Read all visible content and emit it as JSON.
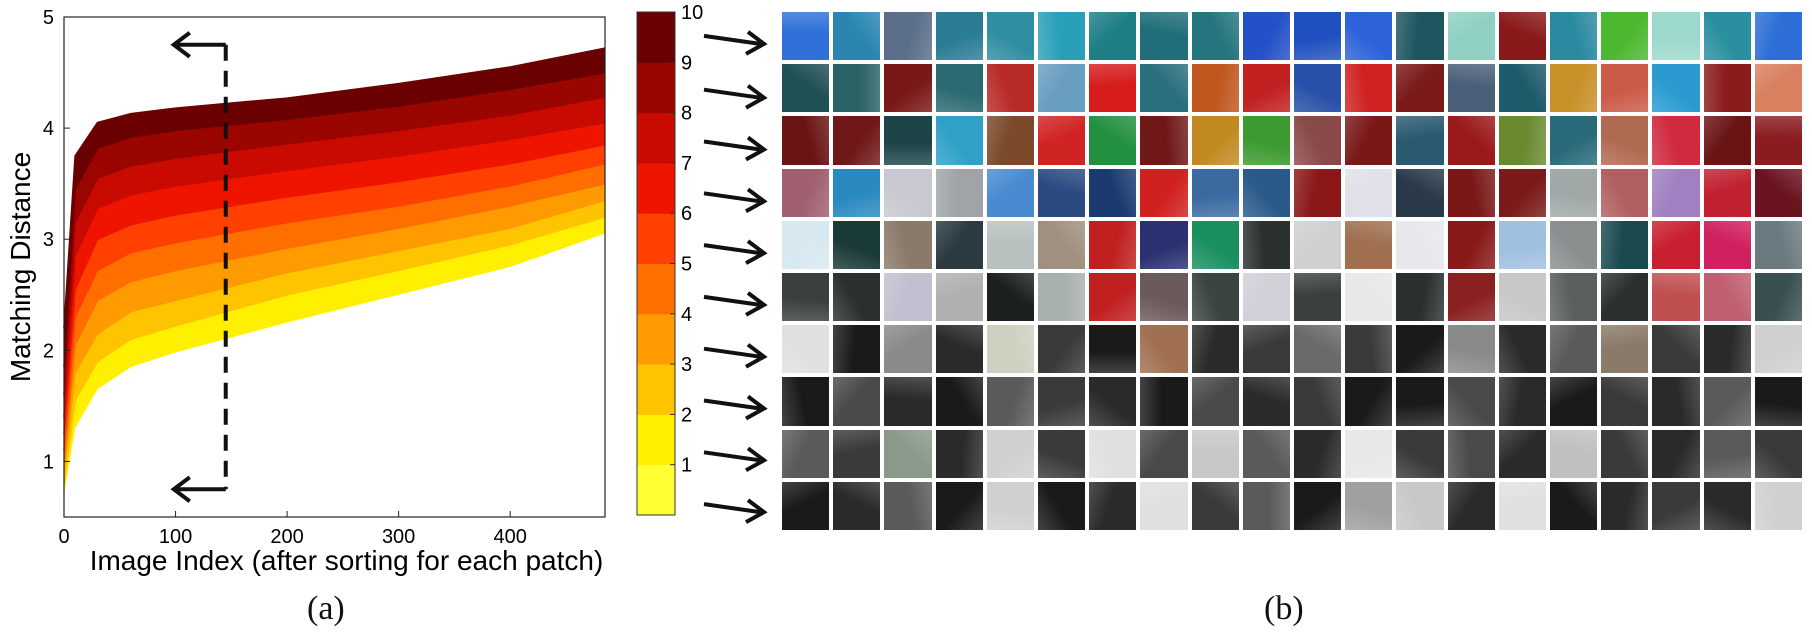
{
  "chart_data": {
    "type": "line",
    "xlabel": "Image Index (after sorting for each patch)",
    "ylabel": "Matching Distance",
    "xlim": [
      0,
      485
    ],
    "ylim": [
      0.5,
      5
    ],
    "xticks": [
      "0",
      "100",
      "200",
      "300",
      "400"
    ],
    "yticks": [
      "1",
      "2",
      "3",
      "4",
      "5"
    ],
    "grid": false,
    "series": [
      {
        "level": 1,
        "x": [
          0,
          10,
          30,
          60,
          100,
          200,
          300,
          400,
          485
        ],
        "y": [
          0.7,
          1.3,
          1.65,
          1.85,
          1.98,
          2.25,
          2.5,
          2.75,
          3.05
        ]
      },
      {
        "level": 2,
        "x": [
          0,
          10,
          30,
          60,
          100,
          200,
          300,
          400,
          485
        ],
        "y": [
          0.8,
          1.55,
          1.9,
          2.1,
          2.22,
          2.5,
          2.72,
          2.95,
          3.2
        ]
      },
      {
        "level": 3,
        "x": [
          0,
          10,
          30,
          60,
          100,
          200,
          300,
          400,
          485
        ],
        "y": [
          0.9,
          1.8,
          2.15,
          2.35,
          2.45,
          2.7,
          2.9,
          3.1,
          3.35
        ]
      },
      {
        "level": 4,
        "x": [
          0,
          10,
          30,
          60,
          100,
          200,
          300,
          400,
          485
        ],
        "y": [
          1.0,
          2.05,
          2.45,
          2.62,
          2.72,
          2.92,
          3.1,
          3.3,
          3.5
        ]
      },
      {
        "level": 5,
        "x": [
          0,
          10,
          30,
          60,
          100,
          200,
          300,
          400,
          485
        ],
        "y": [
          1.1,
          2.3,
          2.72,
          2.88,
          2.97,
          3.15,
          3.3,
          3.48,
          3.68
        ]
      },
      {
        "level": 6,
        "x": [
          0,
          10,
          30,
          60,
          100,
          200,
          300,
          400,
          485
        ],
        "y": [
          1.25,
          2.55,
          3.0,
          3.13,
          3.22,
          3.38,
          3.52,
          3.68,
          3.85
        ]
      },
      {
        "level": 7,
        "x": [
          0,
          10,
          30,
          60,
          100,
          200,
          300,
          400,
          485
        ],
        "y": [
          1.4,
          2.85,
          3.28,
          3.4,
          3.48,
          3.62,
          3.75,
          3.9,
          4.05
        ]
      },
      {
        "level": 8,
        "x": [
          0,
          10,
          30,
          60,
          100,
          200,
          300,
          400,
          485
        ],
        "y": [
          1.6,
          3.15,
          3.55,
          3.66,
          3.73,
          3.86,
          3.98,
          4.12,
          4.28
        ]
      },
      {
        "level": 9,
        "x": [
          0,
          10,
          30,
          60,
          100,
          200,
          300,
          400,
          485
        ],
        "y": [
          1.85,
          3.45,
          3.82,
          3.92,
          3.98,
          4.08,
          4.2,
          4.35,
          4.5
        ]
      },
      {
        "level": 10,
        "x": [
          0,
          10,
          30,
          60,
          100,
          200,
          300,
          400,
          485
        ],
        "y": [
          2.2,
          3.75,
          4.05,
          4.13,
          4.18,
          4.27,
          4.4,
          4.55,
          4.72
        ]
      }
    ],
    "colorbar": {
      "ticks": [
        "1",
        "2",
        "3",
        "4",
        "5",
        "6",
        "7",
        "8",
        "9",
        "10"
      ],
      "range": [
        0,
        10
      ],
      "colors": [
        "#ffff33",
        "#fff000",
        "#ffc400",
        "#ff9a00",
        "#ff6f00",
        "#ff4000",
        "#ee1400",
        "#c80a00",
        "#9a0500",
        "#6a0000"
      ]
    },
    "annotation": "dashed double-headed arrow at x≈145 between y≈0.75 and y≈4.75"
  },
  "captions": {
    "a": "(a)",
    "b": "(b)"
  },
  "patch_rows": [
    [
      "#2f6fd8",
      "#2a86b0",
      "#5b6f8a",
      "#2b7d95",
      "#2f8ea0",
      "#2aa0b8",
      "#1f7f86",
      "#1f6e7a",
      "#24757e",
      "#2450c8",
      "#2050c0",
      "#2d63d8",
      "#1f5560",
      "#8fd0c2",
      "#8a1a1a",
      "#2b8aa0",
      "#4cb830",
      "#9cd8cc",
      "#2a8f9e",
      "#2d6fd6"
    ],
    [
      "#1f5054",
      "#2a6266",
      "#7a1818",
      "#2b6a70",
      "#b82a26",
      "#6a9ec0",
      "#d61c1c",
      "#2a6f7e",
      "#c0571e",
      "#c02020",
      "#2850a8",
      "#d02222",
      "#7a1a1a",
      "#4a6078",
      "#1d5a6a",
      "#c89028",
      "#cc5a48",
      "#2a9ad0",
      "#8a1c1c",
      "#d88060"
    ],
    [
      "#6a1414",
      "#701818",
      "#1c4448",
      "#2fa0c8",
      "#7a4a2a",
      "#d02424",
      "#239040",
      "#701818",
      "#c08a20",
      "#3c9a30",
      "#8a4a4a",
      "#7a1818",
      "#2a5a70",
      "#9a1a1a",
      "#6a8a30",
      "#2a6a7a",
      "#b06a50",
      "#d02a40",
      "#6a1414",
      "#8a1c20"
    ],
    [
      "#a06070",
      "#2a8ac0",
      "#c8c8d0",
      "#a0a4a8",
      "#4a8ad0",
      "#2a4a80",
      "#1a3a70",
      "#d02020",
      "#3a6aa0",
      "#2a5a8a",
      "#8a1818",
      "#e0e0e8",
      "#2a3a4a",
      "#7a1818",
      "#7a1a1a",
      "#a0a8a8",
      "#b06060",
      "#a080c0",
      "#c02030",
      "#6a1420"
    ],
    [
      "#d8e8f0",
      "#1a3a38",
      "#8a7a6a",
      "#2a3a40",
      "#b8c0c0",
      "#a09080",
      "#c02020",
      "#2a3070",
      "#1a9060",
      "#2a3030",
      "#d0d0d0",
      "#a07050",
      "#e8e8ec",
      "#8a1a1a",
      "#a0c0e0",
      "#8a9090",
      "#1a4a50",
      "#c82030",
      "#d02060",
      "#6a7a80"
    ],
    [
      "#3a4040",
      "#2a3030",
      "#c0c0d0",
      "#b0b0b0",
      "#1a2020",
      "#a8b0b0",
      "#c02020",
      "#6a5a5a",
      "#3a4440",
      "#d0d0d8",
      "#3a4040",
      "#e8e8e8",
      "#2a3030",
      "#8a2020",
      "#c8c8c8",
      "#5a6060",
      "#2a3030",
      "#c05050",
      "#c06070",
      "#3a5050"
    ],
    [
      "#e0e0e0",
      "#1a1a1a",
      "#8a8a8a",
      "#2a2a2a",
      "#d0d0c0",
      "#3a3a3a",
      "#1a1a1a",
      "#a07050",
      "#2a2a2a",
      "#3a3a3a",
      "#6a6a6a",
      "#3a3a3a",
      "#1a1a1a",
      "#8a8a8a",
      "#2a2a2a",
      "#5a5a5a",
      "#8a7a6a",
      "#3a3a3a",
      "#2a2a2a",
      "#d0d0d0"
    ],
    [
      "#1a1a1a",
      "#4a4a4a",
      "#2a2a2a",
      "#1a1a1a",
      "#5a5a5a",
      "#3a3a3a",
      "#2a2a2a",
      "#1a1a1a",
      "#4a4a4a",
      "#2a2a2a",
      "#3a3a3a",
      "#1a1a1a",
      "#1a1a1a",
      "#4a4a4a",
      "#2a2a2a",
      "#1a1a1a",
      "#3a3a3a",
      "#2a2a2a",
      "#5a5a5a",
      "#1a1a1a"
    ],
    [
      "#5a5a5a",
      "#3a3a3a",
      "#8a9a8a",
      "#2a2a2a",
      "#d0d0d0",
      "#3a3a3a",
      "#e0e0e0",
      "#4a4a4a",
      "#c8c8c8",
      "#5a5a5a",
      "#2a2a2a",
      "#e8e8e8",
      "#3a3a3a",
      "#4a4a4a",
      "#2a2a2a",
      "#c0c0c0",
      "#3a3a3a",
      "#2a2a2a",
      "#5a5a5a",
      "#3a3a3a"
    ],
    [
      "#1a1a1a",
      "#2a2a2a",
      "#5a5a5a",
      "#1a1a1a",
      "#d0d0d0",
      "#1a1a1a",
      "#2a2a2a",
      "#e0e0e0",
      "#3a3a3a",
      "#5a5a5a",
      "#1a1a1a",
      "#a0a0a0",
      "#c8c8c8",
      "#2a2a2a",
      "#e0e0e0",
      "#1a1a1a",
      "#2a2a2a",
      "#3a3a3a",
      "#2a2a2a",
      "#d0d0d0"
    ]
  ]
}
